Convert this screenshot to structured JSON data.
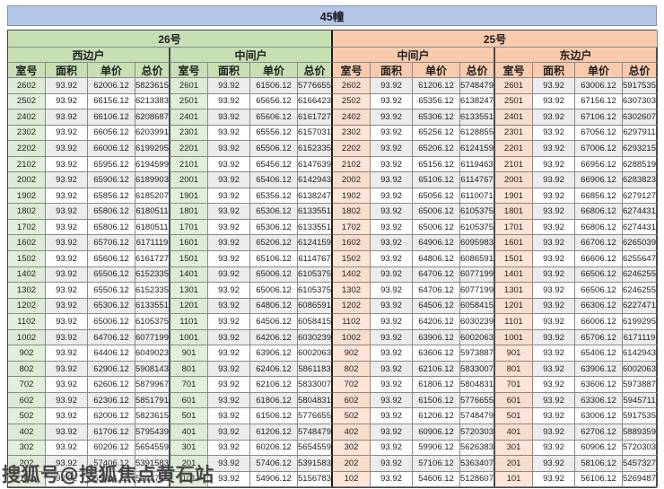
{
  "title": "45幢",
  "watermark": "搜狐号@搜狐焦点黄石站",
  "columns": [
    "室号",
    "面积",
    "单价",
    "总价"
  ],
  "sections": [
    {
      "label": "26号",
      "units": [
        "西边户",
        "中间户"
      ]
    },
    {
      "label": "25号",
      "units": [
        "中间户",
        "东边户"
      ]
    }
  ],
  "groups": [
    {
      "section": "26号",
      "unit": "西边户",
      "rows": [
        [
          "2602",
          "93.92",
          "62006.12",
          "5823615"
        ],
        [
          "2502",
          "93.92",
          "66156.12",
          "6213383"
        ],
        [
          "2402",
          "93.92",
          "66106.12",
          "6208687"
        ],
        [
          "2302",
          "93.92",
          "66056.12",
          "6203991"
        ],
        [
          "2202",
          "93.92",
          "66006.12",
          "6199295"
        ],
        [
          "2102",
          "93.92",
          "65956.12",
          "6194599"
        ],
        [
          "2002",
          "93.92",
          "65906.12",
          "6189903"
        ],
        [
          "1902",
          "93.92",
          "65856.12",
          "6185207"
        ],
        [
          "1802",
          "93.92",
          "65806.12",
          "6180511"
        ],
        [
          "1702",
          "93.92",
          "65806.12",
          "6180511"
        ],
        [
          "1602",
          "93.92",
          "65706.12",
          "6171119"
        ],
        [
          "1502",
          "93.92",
          "65606.12",
          "6161727"
        ],
        [
          "1402",
          "93.92",
          "65506.12",
          "6152335"
        ],
        [
          "1302",
          "93.92",
          "65506.12",
          "6152335"
        ],
        [
          "1202",
          "93.92",
          "65306.12",
          "6133551"
        ],
        [
          "1102",
          "93.92",
          "65006.12",
          "6105375"
        ],
        [
          "1002",
          "93.92",
          "64706.12",
          "6077199"
        ],
        [
          "902",
          "93.92",
          "64406.12",
          "6049023"
        ],
        [
          "802",
          "93.92",
          "62906.12",
          "5908143"
        ],
        [
          "702",
          "93.92",
          "62606.12",
          "5879967"
        ],
        [
          "602",
          "93.92",
          "62306.12",
          "5851791"
        ],
        [
          "502",
          "93.92",
          "62006.12",
          "5823615"
        ],
        [
          "402",
          "93.92",
          "61706.12",
          "5795439"
        ],
        [
          "302",
          "93.92",
          "60206.12",
          "5654559"
        ],
        [
          "202",
          "93.92",
          "57406.12",
          "5391583"
        ],
        [
          "102",
          "93.92",
          "55406.12",
          "5203743"
        ]
      ]
    },
    {
      "section": "26号",
      "unit": "中间户",
      "rows": [
        [
          "2601",
          "93.92",
          "61506.12",
          "5776655"
        ],
        [
          "2501",
          "93.92",
          "65656.12",
          "6166423"
        ],
        [
          "2401",
          "93.92",
          "65606.12",
          "6161727"
        ],
        [
          "2301",
          "93.92",
          "65556.12",
          "6157031"
        ],
        [
          "2201",
          "93.92",
          "65506.12",
          "6152335"
        ],
        [
          "2101",
          "93.92",
          "65456.12",
          "6147639"
        ],
        [
          "2001",
          "93.92",
          "65406.12",
          "6142943"
        ],
        [
          "1901",
          "93.92",
          "65356.12",
          "6138247"
        ],
        [
          "1801",
          "93.92",
          "65306.12",
          "6133551"
        ],
        [
          "1701",
          "93.92",
          "65306.12",
          "6133551"
        ],
        [
          "1601",
          "93.92",
          "65206.12",
          "6124159"
        ],
        [
          "1501",
          "93.92",
          "65106.12",
          "6114767"
        ],
        [
          "1401",
          "93.92",
          "65006.12",
          "6105375"
        ],
        [
          "1301",
          "93.92",
          "65006.12",
          "6105375"
        ],
        [
          "1201",
          "93.92",
          "64806.12",
          "6086591"
        ],
        [
          "1101",
          "93.92",
          "64506.12",
          "6058415"
        ],
        [
          "1001",
          "93.92",
          "64206.12",
          "6030239"
        ],
        [
          "901",
          "93.92",
          "63906.12",
          "6002063"
        ],
        [
          "801",
          "93.92",
          "62406.12",
          "5861183"
        ],
        [
          "701",
          "93.92",
          "62106.12",
          "5833007"
        ],
        [
          "601",
          "93.92",
          "61806.12",
          "5804831"
        ],
        [
          "501",
          "93.92",
          "61506.12",
          "5776655"
        ],
        [
          "401",
          "93.92",
          "61206.12",
          "5748479"
        ],
        [
          "301",
          "93.92",
          "60206.12",
          "5654559"
        ],
        [
          "201",
          "93.92",
          "57406.12",
          "5391583"
        ],
        [
          "101",
          "93.92",
          "54906.12",
          "5156783"
        ]
      ]
    },
    {
      "section": "25号",
      "unit": "中间户",
      "rows": [
        [
          "2602",
          "93.92",
          "61206.12",
          "5748479"
        ],
        [
          "2502",
          "93.92",
          "65356.12",
          "6138247"
        ],
        [
          "2402",
          "93.92",
          "65306.12",
          "6133551"
        ],
        [
          "2302",
          "93.92",
          "65256.12",
          "6128855"
        ],
        [
          "2202",
          "93.92",
          "65206.12",
          "6124159"
        ],
        [
          "2102",
          "93.92",
          "65156.12",
          "6119463"
        ],
        [
          "2002",
          "93.92",
          "65106.12",
          "6114767"
        ],
        [
          "1902",
          "93.92",
          "65056.12",
          "6110071"
        ],
        [
          "1802",
          "93.92",
          "65006.12",
          "6105375"
        ],
        [
          "1702",
          "93.92",
          "65006.12",
          "6105375"
        ],
        [
          "1602",
          "93.92",
          "64906.12",
          "6095983"
        ],
        [
          "1502",
          "93.92",
          "64806.12",
          "6086591"
        ],
        [
          "1402",
          "93.92",
          "64706.12",
          "6077199"
        ],
        [
          "1302",
          "93.92",
          "64706.12",
          "6077199"
        ],
        [
          "1202",
          "93.92",
          "64506.12",
          "6058415"
        ],
        [
          "1102",
          "93.92",
          "64206.12",
          "6030239"
        ],
        [
          "1002",
          "93.92",
          "63906.12",
          "6002063"
        ],
        [
          "902",
          "93.92",
          "63606.12",
          "5973887"
        ],
        [
          "802",
          "93.92",
          "62106.12",
          "5833007"
        ],
        [
          "702",
          "93.92",
          "61806.12",
          "5804831"
        ],
        [
          "602",
          "93.92",
          "61506.12",
          "5776655"
        ],
        [
          "502",
          "93.92",
          "61206.12",
          "5748479"
        ],
        [
          "402",
          "93.92",
          "60906.12",
          "5720303"
        ],
        [
          "302",
          "93.92",
          "59906.12",
          "5626383"
        ],
        [
          "202",
          "93.92",
          "57106.12",
          "5363407"
        ],
        [
          "102",
          "93.92",
          "54606.12",
          "5128607"
        ]
      ]
    },
    {
      "section": "25号",
      "unit": "东边户",
      "rows": [
        [
          "2601",
          "93.92",
          "63006.12",
          "5917535"
        ],
        [
          "2501",
          "93.92",
          "67156.12",
          "6307303"
        ],
        [
          "2401",
          "93.92",
          "67106.12",
          "6302607"
        ],
        [
          "2301",
          "93.92",
          "67056.12",
          "6297911"
        ],
        [
          "2201",
          "93.92",
          "67006.12",
          "6293215"
        ],
        [
          "2101",
          "93.92",
          "66956.12",
          "6288519"
        ],
        [
          "2001",
          "93.92",
          "66906.12",
          "6283823"
        ],
        [
          "1901",
          "93.92",
          "66856.12",
          "6279127"
        ],
        [
          "1801",
          "93.92",
          "66806.12",
          "6274431"
        ],
        [
          "1701",
          "93.92",
          "66806.12",
          "6274431"
        ],
        [
          "1601",
          "93.92",
          "66706.12",
          "6265039"
        ],
        [
          "1501",
          "93.92",
          "66606.12",
          "6255647"
        ],
        [
          "1401",
          "93.92",
          "66506.12",
          "6246255"
        ],
        [
          "1301",
          "93.92",
          "66506.12",
          "6246255"
        ],
        [
          "1201",
          "93.92",
          "66306.12",
          "6227471"
        ],
        [
          "1101",
          "93.92",
          "66006.12",
          "6199295"
        ],
        [
          "1001",
          "93.92",
          "65706.12",
          "6171119"
        ],
        [
          "901",
          "93.92",
          "65406.12",
          "6142943"
        ],
        [
          "801",
          "93.92",
          "63906.12",
          "6002063"
        ],
        [
          "701",
          "93.92",
          "63606.12",
          "5973887"
        ],
        [
          "601",
          "93.92",
          "63306.12",
          "5945711"
        ],
        [
          "501",
          "93.92",
          "63006.12",
          "5917535"
        ],
        [
          "401",
          "93.92",
          "62706.12",
          "5889359"
        ],
        [
          "301",
          "93.92",
          "60906.12",
          "5720303"
        ],
        [
          "201",
          "93.92",
          "58106.12",
          "5457327"
        ],
        [
          "101",
          "93.92",
          "56106.12",
          "5269487"
        ]
      ]
    }
  ],
  "colors": {
    "title_bg": "#b4c7e7",
    "section_26_bg": "#c6e0b4",
    "section_25_bg": "#f8cbad",
    "room_green_bg": "#e2efda",
    "room_peach_bg": "#fce4d6",
    "stripe_bg": "#ececec"
  }
}
